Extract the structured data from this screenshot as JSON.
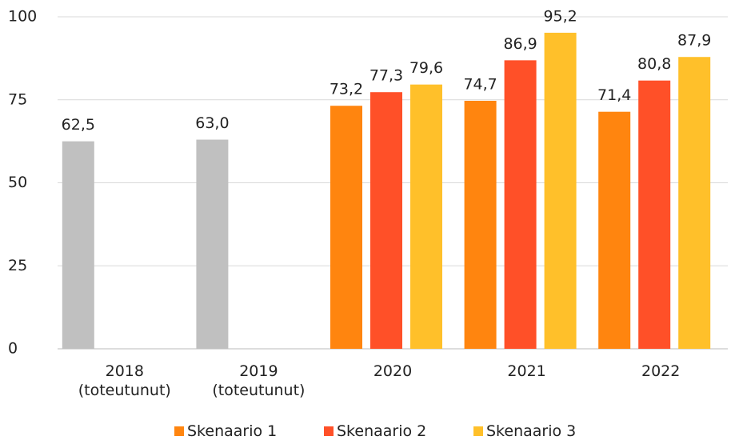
{
  "chart_data": {
    "type": "bar",
    "categories": [
      "2018\n(toteutunut)",
      "2019\n(toteutunut)",
      "2020",
      "2021",
      "2022"
    ],
    "series": [
      {
        "color": "#c0c0c0",
        "values": [
          62.5,
          63.0,
          null,
          null,
          null
        ],
        "value_labels": [
          "62,5",
          "63,0",
          null,
          null,
          null
        ]
      },
      {
        "name": "Skenaario 1",
        "color": "#ff850f",
        "values": [
          null,
          null,
          73.2,
          74.7,
          71.4
        ],
        "value_labels": [
          null,
          null,
          "73,2",
          "74,7",
          "71,4"
        ]
      },
      {
        "name": "Skenaario 2",
        "color": "#ff5028",
        "values": [
          null,
          null,
          77.3,
          86.9,
          80.8
        ],
        "value_labels": [
          null,
          null,
          "77,3",
          "86,9",
          "80,8"
        ]
      },
      {
        "name": "Skenaario 3",
        "color": "#ffc02a",
        "values": [
          null,
          null,
          79.6,
          95.2,
          87.9
        ],
        "value_labels": [
          null,
          null,
          "79,6",
          "95,2",
          "87,9"
        ]
      }
    ],
    "ylim": [
      0,
      100
    ],
    "yticks": [
      0,
      25,
      50,
      75,
      100
    ],
    "grid": true,
    "legend": "bottom"
  }
}
